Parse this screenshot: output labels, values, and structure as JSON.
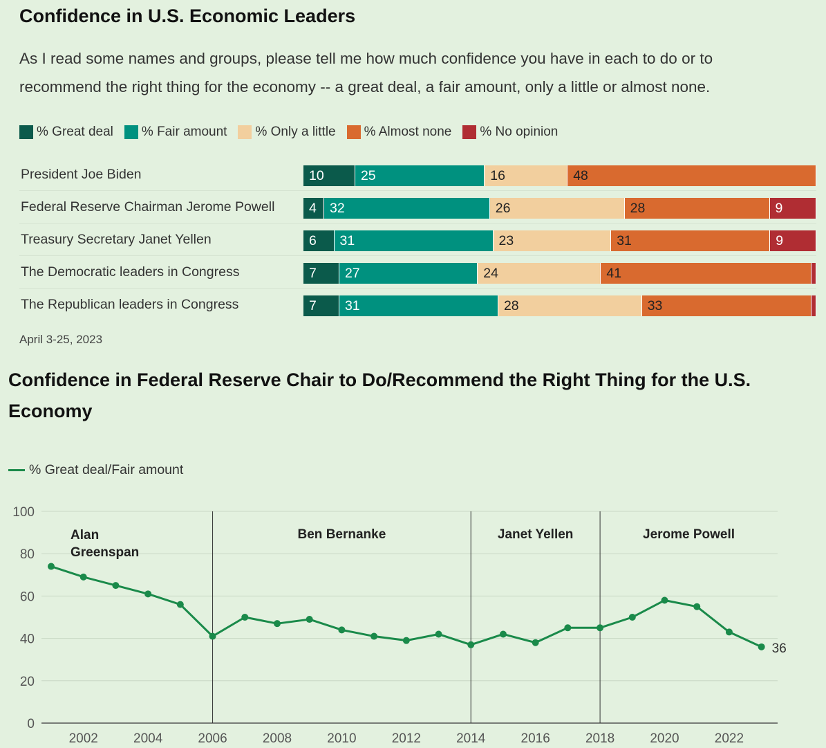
{
  "chart_data": [
    {
      "type": "bar",
      "stacked": true,
      "orientation": "horizontal",
      "title": "Confidence in U.S. Economic Leaders",
      "subtitle": "As I read some names and groups, please tell me how much confidence you have in each to do or to recommend the right thing for the economy -- a great deal, a fair amount, only a little or almost none.",
      "legend_position": "top",
      "categories": [
        "President Joe Biden",
        "Federal Reserve Chairman Jerome Powell",
        "Treasury Secretary Janet Yellen",
        "The Democratic leaders in Congress",
        "The Republican leaders in Congress"
      ],
      "series": [
        {
          "name": "% Great deal",
          "color": "#0b5a4b",
          "text_color": "#ffffff",
          "values": [
            10,
            4,
            6,
            7,
            7
          ]
        },
        {
          "name": "% Fair amount",
          "color": "#00917f",
          "text_color": "#ffffff",
          "values": [
            25,
            32,
            31,
            27,
            31
          ]
        },
        {
          "name": "% Only a little",
          "color": "#f2cf9e",
          "text_color": "#222222",
          "values": [
            16,
            26,
            23,
            24,
            28
          ]
        },
        {
          "name": "% Almost none",
          "color": "#d96a2f",
          "text_color": "#222222",
          "values": [
            48,
            28,
            31,
            41,
            33
          ]
        },
        {
          "name": "% No opinion",
          "color": "#b02d33",
          "text_color": "#ffffff",
          "values": [
            0,
            9,
            9,
            1,
            1
          ]
        }
      ],
      "value_labels": [
        [
          "10",
          "25",
          "16",
          "48",
          ""
        ],
        [
          "4",
          "32",
          "26",
          "28",
          "9"
        ],
        [
          "6",
          "31",
          "23",
          "31",
          "9"
        ],
        [
          "7",
          "27",
          "24",
          "41",
          ""
        ],
        [
          "7",
          "31",
          "28",
          "33",
          ""
        ]
      ],
      "date_note": "April 3-25, 2023"
    },
    {
      "type": "line",
      "title": "Confidence in Federal Reserve Chair to Do/Recommend the Right Thing for the U.S. Economy",
      "legend_position": "top-left",
      "series": [
        {
          "name": "% Great deal/Fair amount",
          "color": "#1a8a4a",
          "x": [
            2001,
            2002,
            2003,
            2004,
            2005,
            2006,
            2007,
            2008,
            2009,
            2010,
            2011,
            2012,
            2013,
            2014,
            2015,
            2016,
            2017,
            2018,
            2019,
            2020,
            2021,
            2022,
            2023
          ],
          "y": [
            74,
            69,
            65,
            61,
            56,
            41,
            50,
            47,
            49,
            44,
            41,
            39,
            42,
            37,
            42,
            38,
            45,
            45,
            50,
            58,
            55,
            43,
            36
          ]
        }
      ],
      "end_label": "36",
      "xlim": [
        2000.7,
        2023.5
      ],
      "ylim": [
        0,
        100
      ],
      "x_ticks": [
        2002,
        2004,
        2006,
        2008,
        2010,
        2012,
        2014,
        2016,
        2018,
        2020,
        2022
      ],
      "y_ticks": [
        0,
        20,
        40,
        60,
        80,
        100
      ],
      "grid": true,
      "eras": [
        {
          "label": "Alan Greenspan",
          "from": 2000.7,
          "to": 2006
        },
        {
          "label": "Ben Bernanke",
          "from": 2006,
          "to": 2014
        },
        {
          "label": "Janet Yellen",
          "from": 2014,
          "to": 2018
        },
        {
          "label": "Jerome Powell",
          "from": 2018,
          "to": 2023.5
        }
      ]
    }
  ]
}
